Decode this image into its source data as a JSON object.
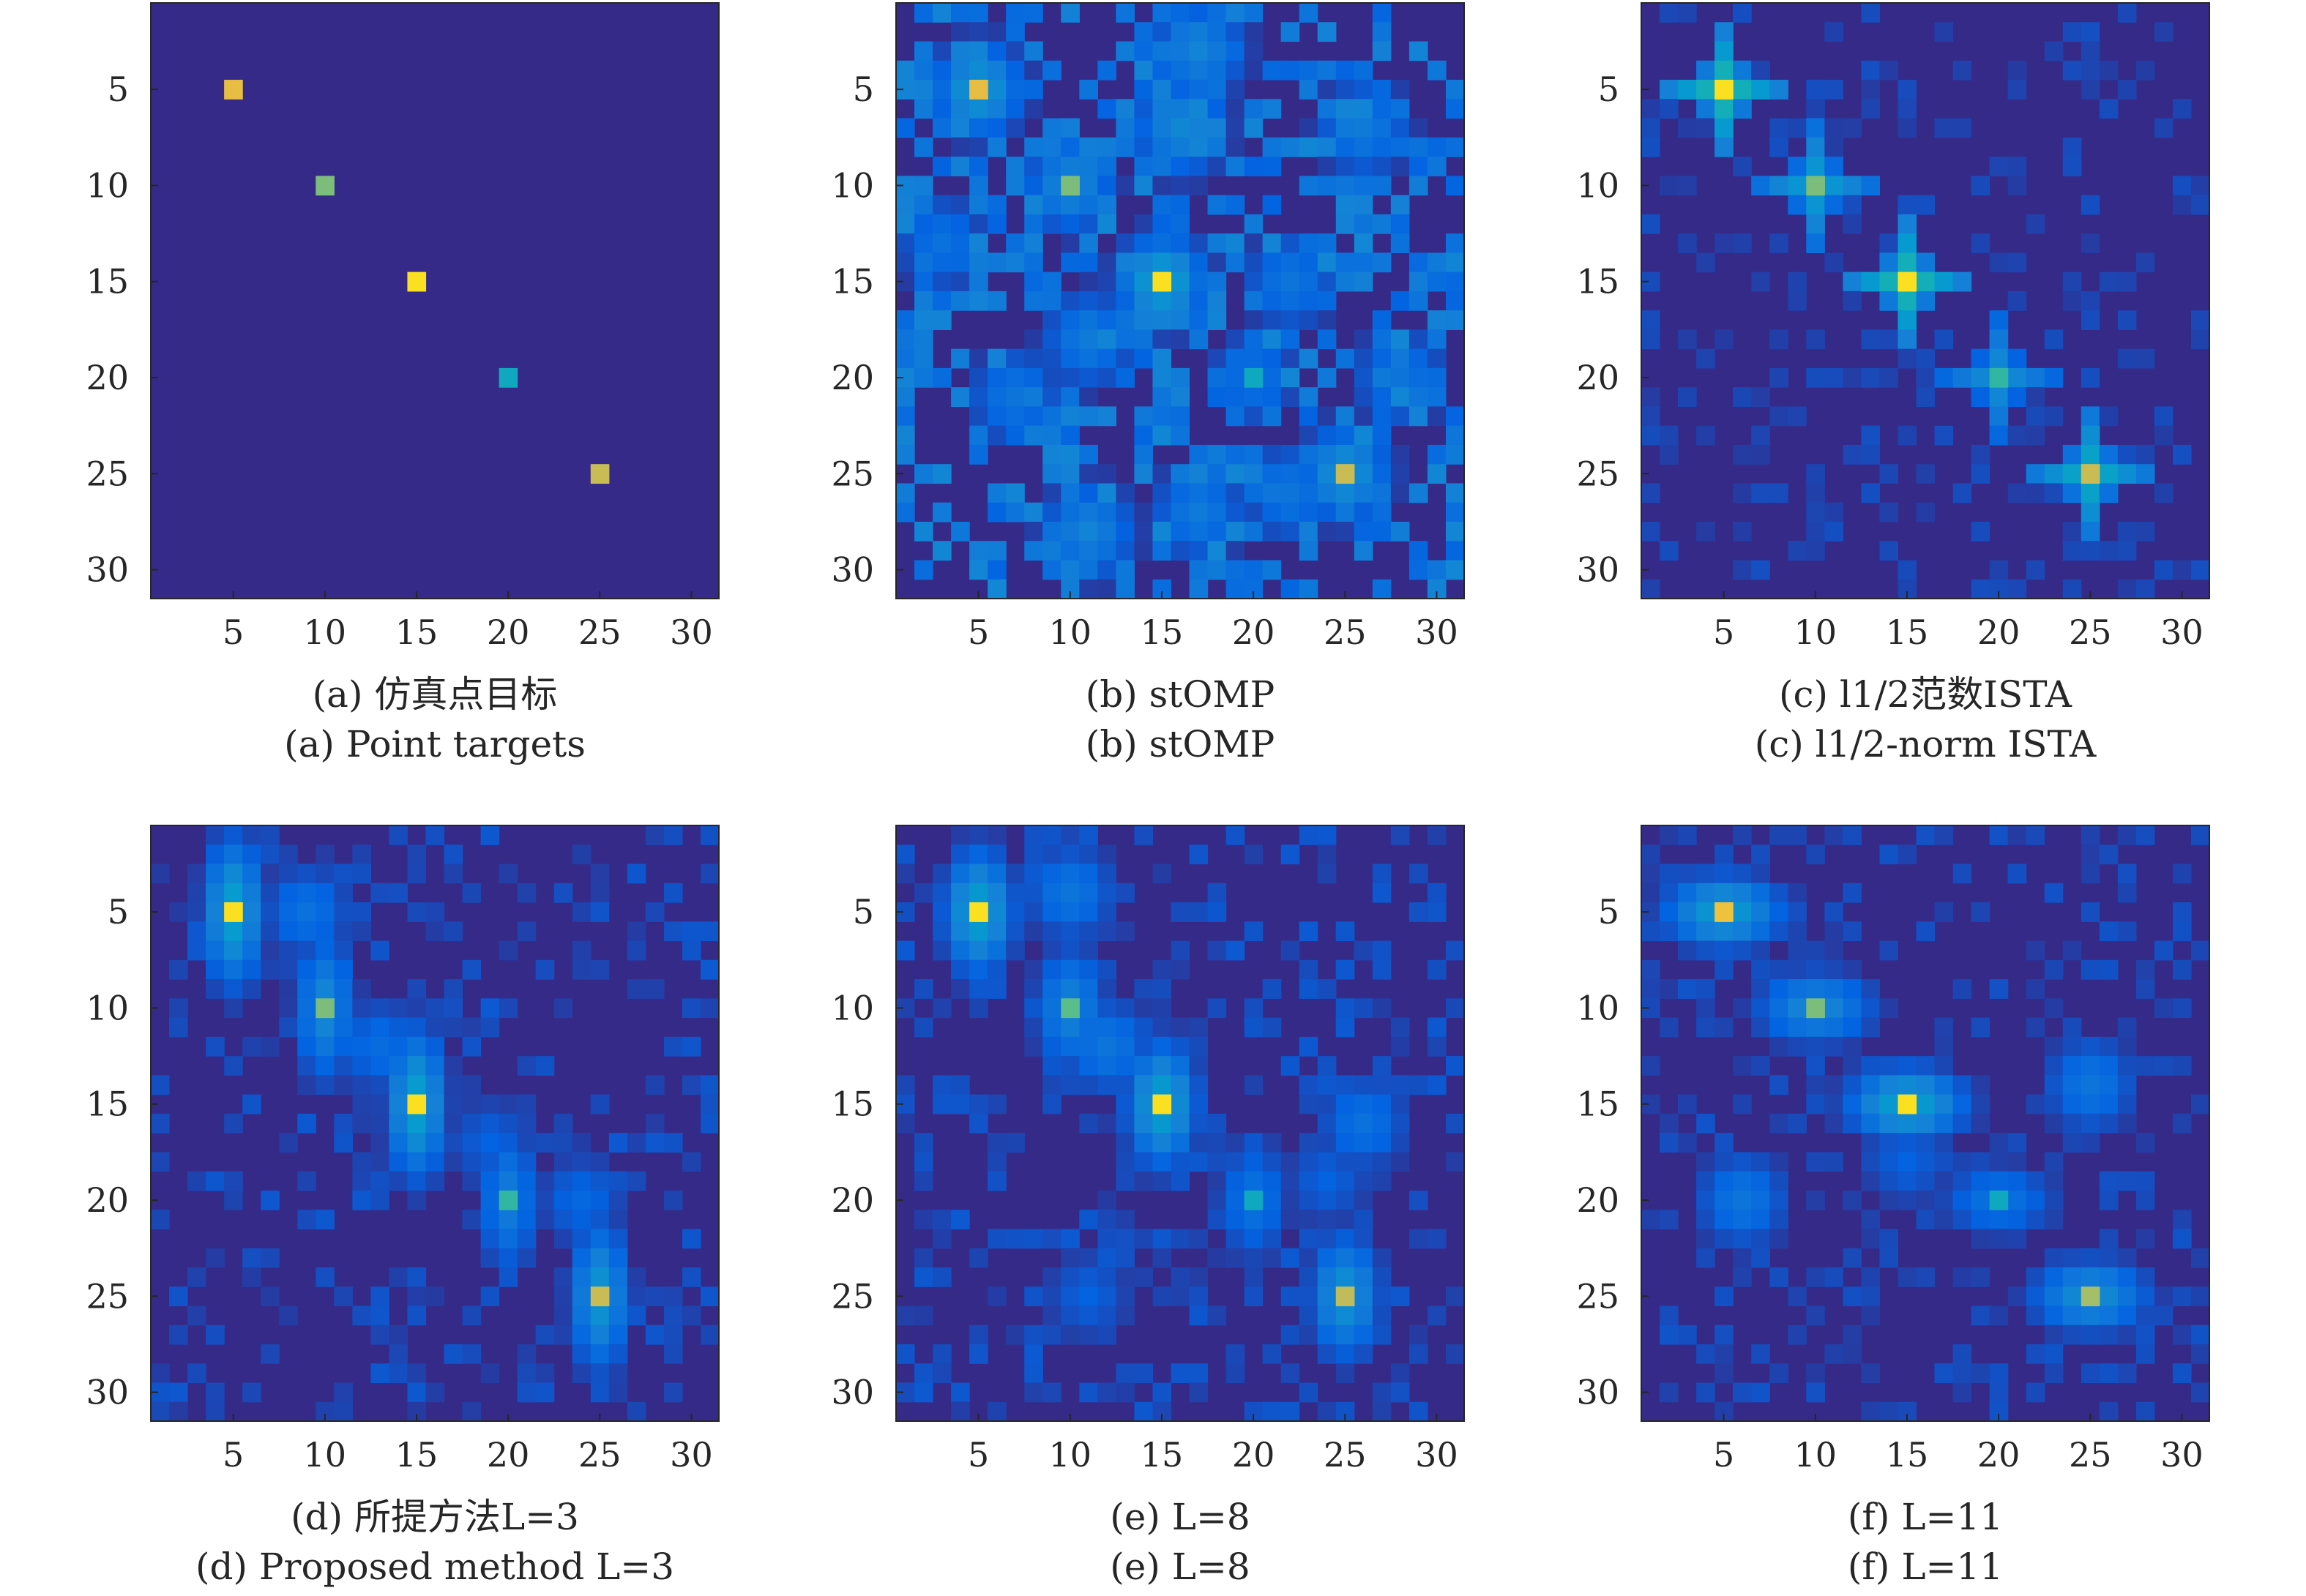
{
  "chart_data": [
    {
      "type": "heatmap",
      "caption_zh": "(a) 仿真点目标",
      "caption_en": "(a) Point targets",
      "grid_size": [
        31,
        31
      ],
      "xlim": [
        0.5,
        31.5
      ],
      "ylim": [
        0.5,
        31.5
      ],
      "y_reversed": true,
      "xticks": [
        5,
        10,
        15,
        20,
        25,
        30
      ],
      "yticks": [
        5,
        10,
        15,
        20,
        25,
        30
      ],
      "colormap": "parula",
      "targets": [
        {
          "x": 5,
          "y": 5,
          "value": 0.88
        },
        {
          "x": 10,
          "y": 10,
          "value": 0.68
        },
        {
          "x": 15,
          "y": 15,
          "value": 0.97
        },
        {
          "x": 20,
          "y": 20,
          "value": 0.45
        },
        {
          "x": 25,
          "y": 25,
          "value": 0.82
        }
      ],
      "background": {
        "spread_x": 0,
        "spread_y": 0,
        "level": 0,
        "noise": 0
      }
    },
    {
      "type": "heatmap",
      "caption_zh": "(b) stOMP",
      "caption_en": "(b) stOMP",
      "grid_size": [
        31,
        31
      ],
      "xlim": [
        0.5,
        31.5
      ],
      "ylim": [
        0.5,
        31.5
      ],
      "y_reversed": true,
      "xticks": [
        5,
        10,
        15,
        20,
        25,
        30
      ],
      "yticks": [
        5,
        10,
        15,
        20,
        25,
        30
      ],
      "colormap": "parula",
      "targets": [
        {
          "x": 5,
          "y": 5,
          "value": 0.88
        },
        {
          "x": 10,
          "y": 10,
          "value": 0.68
        },
        {
          "x": 15,
          "y": 15,
          "value": 0.97
        },
        {
          "x": 20,
          "y": 20,
          "value": 0.45
        },
        {
          "x": 25,
          "y": 25,
          "value": 0.82
        }
      ],
      "background": {
        "spread_x": 1.5,
        "spread_y": 1.5,
        "level": 0.12,
        "noise": 0.16,
        "blobs": [
          [
            17,
            3,
            0.26
          ],
          [
            16,
            7,
            0.28
          ],
          [
            26,
            7,
            0.22
          ],
          [
            15,
            15,
            0.3
          ],
          [
            22,
            15,
            0.2
          ],
          [
            11,
            18,
            0.22
          ],
          [
            7,
            21,
            0.2
          ],
          [
            28,
            20,
            0.2
          ],
          [
            17,
            27,
            0.22
          ],
          [
            11,
            28,
            0.26
          ],
          [
            22,
            26,
            0.2
          ],
          [
            3,
            13,
            0.18
          ]
        ]
      }
    },
    {
      "type": "heatmap",
      "caption_zh": "(c) l1/2范数ISTA",
      "caption_en": "(c) l1/2-norm ISTA",
      "grid_size": [
        31,
        31
      ],
      "xlim": [
        0.5,
        31.5
      ],
      "ylim": [
        0.5,
        31.5
      ],
      "y_reversed": true,
      "xticks": [
        5,
        10,
        15,
        20,
        25,
        30
      ],
      "yticks": [
        5,
        10,
        15,
        20,
        25,
        30
      ],
      "colormap": "parula",
      "targets": [
        {
          "x": 5,
          "y": 5,
          "value": 0.97
        },
        {
          "x": 10,
          "y": 10,
          "value": 0.68
        },
        {
          "x": 15,
          "y": 15,
          "value": 0.97
        },
        {
          "x": 20,
          "y": 20,
          "value": 0.55
        },
        {
          "x": 25,
          "y": 25,
          "value": 0.82
        }
      ],
      "background": {
        "spread_x": 1.2,
        "spread_y": 1.2,
        "level": 0.0,
        "noise": 0.08,
        "cross": true
      }
    },
    {
      "type": "heatmap",
      "caption_zh": "(d) 所提方法L=3",
      "caption_en": "(d) Proposed method L=3",
      "grid_size": [
        31,
        31
      ],
      "xlim": [
        0.5,
        31.5
      ],
      "ylim": [
        0.5,
        31.5
      ],
      "y_reversed": true,
      "xticks": [
        5,
        10,
        15,
        20,
        25,
        30
      ],
      "yticks": [
        5,
        10,
        15,
        20,
        25,
        30
      ],
      "colormap": "parula",
      "targets": [
        {
          "x": 5,
          "y": 5,
          "value": 0.97
        },
        {
          "x": 10,
          "y": 10,
          "value": 0.68
        },
        {
          "x": 15,
          "y": 15,
          "value": 0.97
        },
        {
          "x": 20,
          "y": 20,
          "value": 0.55
        },
        {
          "x": 25,
          "y": 25,
          "value": 0.82
        }
      ],
      "background": {
        "spread_x": 1.0,
        "spread_y": 2.4,
        "level": 0.0,
        "noise": 0.1,
        "blobs": [
          [
            9,
            5,
            0.18
          ],
          [
            13,
            12,
            0.16
          ],
          [
            19,
            17,
            0.12
          ],
          [
            24,
            20,
            0.14
          ]
        ]
      }
    },
    {
      "type": "heatmap",
      "caption_zh": "(e) L=8",
      "caption_en": "(e) L=8",
      "grid_size": [
        31,
        31
      ],
      "xlim": [
        0.5,
        31.5
      ],
      "ylim": [
        0.5,
        31.5
      ],
      "y_reversed": true,
      "xticks": [
        5,
        10,
        15,
        20,
        25,
        30
      ],
      "yticks": [
        5,
        10,
        15,
        20,
        25,
        30
      ],
      "colormap": "parula",
      "targets": [
        {
          "x": 5,
          "y": 5,
          "value": 0.97
        },
        {
          "x": 10,
          "y": 10,
          "value": 0.62
        },
        {
          "x": 15,
          "y": 15,
          "value": 0.97
        },
        {
          "x": 20,
          "y": 20,
          "value": 0.45
        },
        {
          "x": 25,
          "y": 25,
          "value": 0.8
        }
      ],
      "background": {
        "spread_x": 1.2,
        "spread_y": 2.0,
        "level": 0.0,
        "noise": 0.1,
        "blobs": [
          [
            10,
            4,
            0.2
          ],
          [
            12,
            12,
            0.2
          ],
          [
            26,
            16,
            0.18
          ],
          [
            24,
            19,
            0.12
          ],
          [
            11,
            25,
            0.12
          ]
        ]
      }
    },
    {
      "type": "heatmap",
      "caption_zh": "(f) L=11",
      "caption_en": "(f) L=11",
      "grid_size": [
        31,
        31
      ],
      "xlim": [
        0.5,
        31.5
      ],
      "ylim": [
        0.5,
        31.5
      ],
      "y_reversed": true,
      "xticks": [
        5,
        10,
        15,
        20,
        25,
        30
      ],
      "yticks": [
        5,
        10,
        15,
        20,
        25,
        30
      ],
      "colormap": "parula",
      "targets": [
        {
          "x": 5,
          "y": 5,
          "value": 0.9
        },
        {
          "x": 10,
          "y": 10,
          "value": 0.68
        },
        {
          "x": 15,
          "y": 15,
          "value": 0.97
        },
        {
          "x": 20,
          "y": 20,
          "value": 0.45
        },
        {
          "x": 25,
          "y": 25,
          "value": 0.75
        }
      ],
      "background": {
        "spread_x": 2.0,
        "spread_y": 1.2,
        "level": 0.0,
        "noise": 0.09,
        "blobs": [
          [
            25,
            14,
            0.2
          ],
          [
            6,
            20,
            0.2
          ],
          [
            15,
            18,
            0.12
          ],
          [
            26,
            25,
            0.12
          ]
        ]
      }
    }
  ]
}
